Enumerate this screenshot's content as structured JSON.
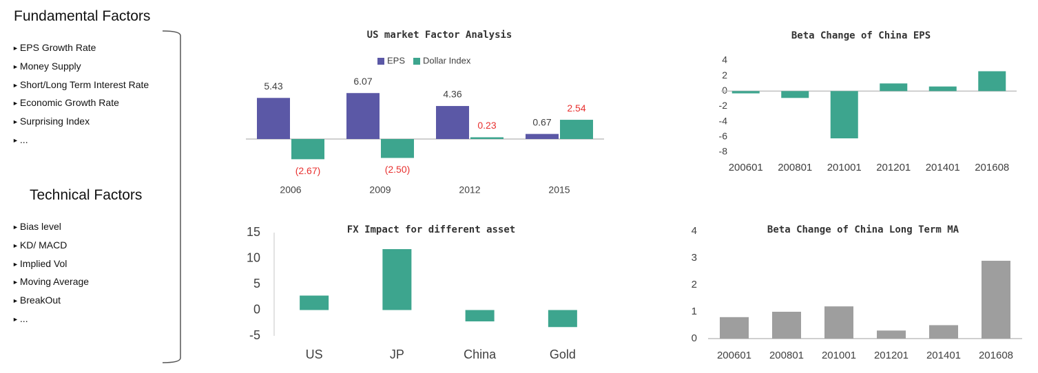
{
  "sidebar": {
    "fundamental": {
      "title": "Fundamental Factors",
      "items": [
        "EPS Growth Rate",
        "Money Supply",
        "Short/Long Term Interest Rate",
        "Economic Growth Rate",
        "Surprising Index",
        "..."
      ]
    },
    "technical": {
      "title": "Technical Factors",
      "items": [
        "Bias level",
        "KD/ MACD",
        "Implied Vol",
        "Moving Average",
        "BreakOut",
        "..."
      ]
    }
  },
  "chart_data": [
    {
      "type": "bar",
      "title": "US market Factor Analysis",
      "categories": [
        "2006",
        "2009",
        "2012",
        "2015"
      ],
      "series": [
        {
          "name": "EPS",
          "color": "#5b58a6",
          "label_color": "#404040",
          "values": [
            5.43,
            6.07,
            4.36,
            0.67
          ]
        },
        {
          "name": "Dollar Index",
          "color": "#3da58e",
          "label_color": "#e8302f",
          "values": [
            -2.67,
            -2.5,
            0.23,
            2.54
          ],
          "value_labels": [
            "(2.67)",
            "(2.50)",
            "0.23",
            "2.54"
          ]
        }
      ]
    },
    {
      "type": "bar",
      "title": "Beta Change of China EPS",
      "categories": [
        "200601",
        "200801",
        "201001",
        "201201",
        "201401",
        "201608"
      ],
      "values": [
        -0.3,
        -0.9,
        -6.2,
        1.0,
        0.6,
        2.6
      ],
      "color": "#3da58e",
      "ylim": [
        -8,
        4
      ],
      "yticks": [
        -8,
        -6,
        -4,
        -2,
        0,
        2,
        4
      ]
    },
    {
      "type": "bar",
      "title": "FX Impact for different asset",
      "categories": [
        "US",
        "JP",
        "China",
        "Gold"
      ],
      "values": [
        2.8,
        11.8,
        -2.2,
        -3.3
      ],
      "color": "#3da58e",
      "ylim": [
        -5,
        15
      ],
      "yticks": [
        -5,
        0,
        5,
        10,
        15
      ]
    },
    {
      "type": "bar",
      "title": "Beta Change of China Long Term MA",
      "categories": [
        "200601",
        "200801",
        "201001",
        "201201",
        "201401",
        "201608"
      ],
      "values": [
        0.8,
        1.0,
        1.2,
        0.3,
        0.5,
        2.9
      ],
      "color": "#9e9e9e",
      "ylim": [
        0,
        4
      ],
      "yticks": [
        0,
        1,
        2,
        3,
        4
      ]
    }
  ]
}
